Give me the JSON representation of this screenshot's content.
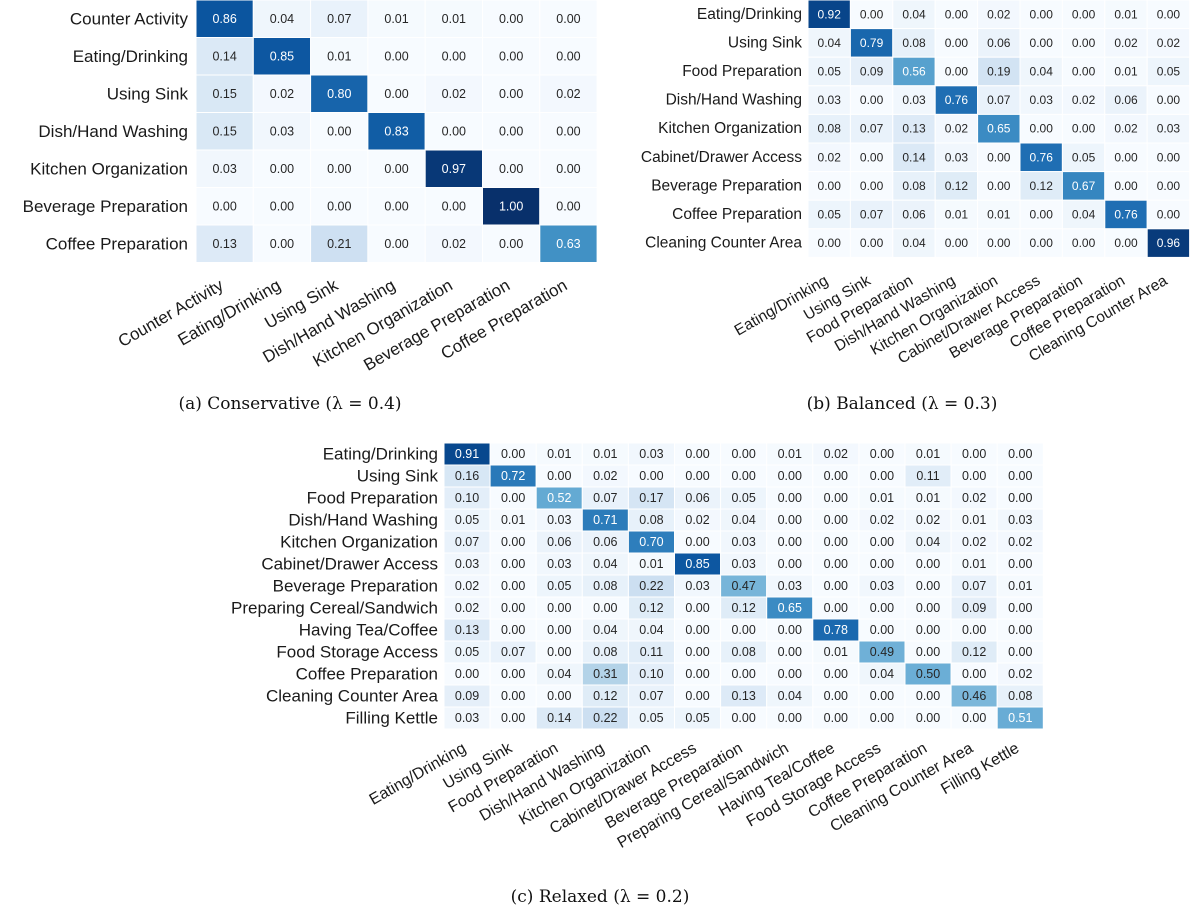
{
  "chart_data": [
    {
      "type": "heatmap",
      "caption": "(a)  Conservative (λ = 0.4)",
      "row_labels": [
        "Counter Activity",
        "Eating/Drinking",
        "Using Sink",
        "Dish/Hand Washing",
        "Kitchen Organization",
        "Beverage Preparation",
        "Coffee Preparation"
      ],
      "col_labels": [
        "Counter Activity",
        "Eating/Drinking",
        "Using Sink",
        "Dish/Hand Washing",
        "Kitchen Organization",
        "Beverage Preparation",
        "Coffee Preparation"
      ],
      "values": [
        [
          0.86,
          0.04,
          0.07,
          0.01,
          0.01,
          0.0,
          0.0
        ],
        [
          0.14,
          0.85,
          0.01,
          0.0,
          0.0,
          0.0,
          0.0
        ],
        [
          0.15,
          0.02,
          0.8,
          0.0,
          0.02,
          0.0,
          0.02
        ],
        [
          0.15,
          0.03,
          0.0,
          0.83,
          0.0,
          0.0,
          0.0
        ],
        [
          0.03,
          0.0,
          0.0,
          0.0,
          0.97,
          0.0,
          0.0
        ],
        [
          0.0,
          0.0,
          0.0,
          0.0,
          0.0,
          1.0,
          0.0
        ],
        [
          0.13,
          0.0,
          0.21,
          0.0,
          0.02,
          0.0,
          0.63
        ]
      ],
      "colormap": "Blues",
      "vrange": [
        0,
        1
      ]
    },
    {
      "type": "heatmap",
      "caption": "(b)  Balanced (λ = 0.3)",
      "row_labels": [
        "Eating/Drinking",
        "Using Sink",
        "Food Preparation",
        "Dish/Hand Washing",
        "Kitchen Organization",
        "Cabinet/Drawer Access",
        "Beverage Preparation",
        "Coffee Preparation",
        "Cleaning Counter Area"
      ],
      "col_labels": [
        "Eating/Drinking",
        "Using Sink",
        "Food Preparation",
        "Dish/Hand Washing",
        "Kitchen Organization",
        "Cabinet/Drawer Access",
        "Beverage Preparation",
        "Coffee Preparation",
        "Cleaning Counter Area"
      ],
      "values": [
        [
          0.92,
          0.0,
          0.04,
          0.0,
          0.02,
          0.0,
          0.0,
          0.01,
          0.0
        ],
        [
          0.04,
          0.79,
          0.08,
          0.0,
          0.06,
          0.0,
          0.0,
          0.02,
          0.02
        ],
        [
          0.05,
          0.09,
          0.56,
          0.0,
          0.19,
          0.04,
          0.0,
          0.01,
          0.05
        ],
        [
          0.03,
          0.0,
          0.03,
          0.76,
          0.07,
          0.03,
          0.02,
          0.06,
          0.0
        ],
        [
          0.08,
          0.07,
          0.13,
          0.02,
          0.65,
          0.0,
          0.0,
          0.02,
          0.03
        ],
        [
          0.02,
          0.0,
          0.14,
          0.03,
          0.0,
          0.76,
          0.05,
          0.0,
          0.0
        ],
        [
          0.0,
          0.0,
          0.08,
          0.12,
          0.0,
          0.12,
          0.67,
          0.0,
          0.0
        ],
        [
          0.05,
          0.07,
          0.06,
          0.01,
          0.01,
          0.0,
          0.04,
          0.76,
          0.0
        ],
        [
          0.0,
          0.0,
          0.04,
          0.0,
          0.0,
          0.0,
          0.0,
          0.0,
          0.96
        ]
      ],
      "colormap": "Blues",
      "vrange": [
        0,
        1
      ]
    },
    {
      "type": "heatmap",
      "caption": "(c)  Relaxed (λ = 0.2)",
      "row_labels": [
        "Eating/Drinking",
        "Using Sink",
        "Food Preparation",
        "Dish/Hand Washing",
        "Kitchen Organization",
        "Cabinet/Drawer Access",
        "Beverage Preparation",
        "Preparing Cereal/Sandwich",
        "Having Tea/Coffee",
        "Food Storage Access",
        "Coffee Preparation",
        "Cleaning Counter Area",
        "Filling Kettle"
      ],
      "col_labels": [
        "Eating/Drinking",
        "Using Sink",
        "Food Preparation",
        "Dish/Hand Washing",
        "Kitchen Organization",
        "Cabinet/Drawer Access",
        "Beverage Preparation",
        "Preparing Cereal/Sandwich",
        "Having Tea/Coffee",
        "Food Storage Access",
        "Coffee Preparation",
        "Cleaning Counter Area",
        "Filling Kettle"
      ],
      "values": [
        [
          0.91,
          0.0,
          0.01,
          0.01,
          0.03,
          0.0,
          0.0,
          0.01,
          0.02,
          0.0,
          0.01,
          0.0,
          0.0
        ],
        [
          0.16,
          0.72,
          0.0,
          0.02,
          0.0,
          0.0,
          0.0,
          0.0,
          0.0,
          0.0,
          0.11,
          0.0,
          0.0
        ],
        [
          0.1,
          0.0,
          0.52,
          0.07,
          0.17,
          0.06,
          0.05,
          0.0,
          0.0,
          0.01,
          0.01,
          0.02,
          0.0
        ],
        [
          0.05,
          0.01,
          0.03,
          0.71,
          0.08,
          0.02,
          0.04,
          0.0,
          0.0,
          0.02,
          0.02,
          0.01,
          0.03
        ],
        [
          0.07,
          0.0,
          0.06,
          0.06,
          0.7,
          0.0,
          0.03,
          0.0,
          0.0,
          0.0,
          0.04,
          0.02,
          0.02
        ],
        [
          0.03,
          0.0,
          0.03,
          0.04,
          0.01,
          0.85,
          0.03,
          0.0,
          0.0,
          0.0,
          0.0,
          0.01,
          0.0
        ],
        [
          0.02,
          0.0,
          0.05,
          0.08,
          0.22,
          0.03,
          0.47,
          0.03,
          0.0,
          0.03,
          0.0,
          0.07,
          0.01
        ],
        [
          0.02,
          0.0,
          0.0,
          0.0,
          0.12,
          0.0,
          0.12,
          0.65,
          0.0,
          0.0,
          0.0,
          0.09,
          0.0
        ],
        [
          0.13,
          0.0,
          0.0,
          0.04,
          0.04,
          0.0,
          0.0,
          0.0,
          0.78,
          0.0,
          0.0,
          0.0,
          0.0
        ],
        [
          0.05,
          0.07,
          0.0,
          0.08,
          0.11,
          0.0,
          0.08,
          0.0,
          0.01,
          0.49,
          0.0,
          0.12,
          0.0
        ],
        [
          0.0,
          0.0,
          0.04,
          0.31,
          0.1,
          0.0,
          0.0,
          0.0,
          0.0,
          0.04,
          0.5,
          0.0,
          0.02
        ],
        [
          0.09,
          0.0,
          0.0,
          0.12,
          0.07,
          0.0,
          0.13,
          0.04,
          0.0,
          0.0,
          0.0,
          0.46,
          0.08
        ],
        [
          0.03,
          0.0,
          0.14,
          0.22,
          0.05,
          0.05,
          0.0,
          0.0,
          0.0,
          0.0,
          0.0,
          0.0,
          0.51
        ]
      ],
      "colormap": "Blues",
      "vrange": [
        0,
        1
      ]
    }
  ]
}
